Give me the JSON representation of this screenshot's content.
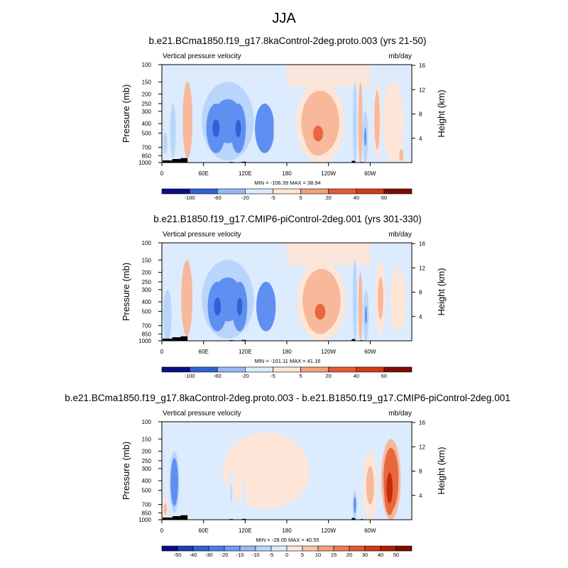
{
  "figure_title": "JJA",
  "colors": {
    "strong_blue": "#0c1d9e",
    "blue": "#2f62d6",
    "mid_blue": "#5f8ff0",
    "light_blue": "#b9d5fb",
    "pale_blue": "#dcebfd",
    "pale_red": "#fde5d7",
    "light_red": "#f7b89c",
    "red": "#e8683e",
    "dark_red": "#c62a08",
    "topography": "#000000"
  },
  "chart_data": [
    {
      "type": "heatmap",
      "title": "b.e21.BCma1850.f19_g17.8kaControl-2deg.proto.003 (yrs 21-50)",
      "variable_label": "Vertical pressure velocity",
      "units_label": "mb/day",
      "ylabel_left": "Pressure (mb)",
      "ylabel_right": "Height (km)",
      "xlabel": "",
      "x_ticks": [
        "0",
        "60E",
        "120E",
        "180",
        "120W",
        "60W"
      ],
      "x_tick_values": [
        0,
        60,
        120,
        180,
        240,
        300
      ],
      "xlim": [
        0,
        360
      ],
      "y_ticks": [
        "100",
        "150",
        "200",
        "250",
        "300",
        "400",
        "500",
        "700",
        "850",
        "1000"
      ],
      "y_tick_values": [
        100,
        150,
        200,
        250,
        300,
        400,
        500,
        700,
        850,
        1000
      ],
      "ylim": [
        1000,
        100
      ],
      "right_ticks": [
        "16",
        "12",
        "8",
        "4"
      ],
      "right_tick_values": [
        16,
        12,
        8,
        4
      ],
      "stats_text": "MIN = -106.39  MAX = 38.94",
      "min": -106.39,
      "max": 38.94,
      "colorbar_labels": [
        "-100",
        "-60",
        "-20",
        "-5",
        "5",
        "20",
        "40",
        "60"
      ],
      "features": [
        {
          "lon": 5,
          "width": 10,
          "p_top": 400,
          "p_bottom": 1000,
          "value": -15
        },
        {
          "lon": 16,
          "width": 8,
          "p_top": 250,
          "p_bottom": 900,
          "value": -30
        },
        {
          "lon": 37,
          "width": 14,
          "p_top": 150,
          "p_bottom": 900,
          "value": 30
        },
        {
          "lon": 95,
          "width": 75,
          "p_top": 150,
          "p_bottom": 950,
          "value": -45
        },
        {
          "lon": 78,
          "width": 28,
          "p_top": 250,
          "p_bottom": 800,
          "value": -70
        },
        {
          "lon": 110,
          "width": 22,
          "p_top": 250,
          "p_bottom": 800,
          "value": -75
        },
        {
          "lon": 148,
          "width": 28,
          "p_top": 250,
          "p_bottom": 800,
          "value": -60
        },
        {
          "lon": 175,
          "width": 28,
          "p_top": 200,
          "p_bottom": 1000,
          "value": -10
        },
        {
          "lon": 228,
          "width": 70,
          "p_top": 150,
          "p_bottom": 1000,
          "value": 20
        },
        {
          "lon": 225,
          "width": 40,
          "p_top": 300,
          "p_bottom": 850,
          "value": 35
        },
        {
          "lon": 278,
          "width": 6,
          "p_top": 150,
          "p_bottom": 1000,
          "value": -25
        },
        {
          "lon": 286,
          "width": 6,
          "p_top": 150,
          "p_bottom": 1000,
          "value": 25
        },
        {
          "lon": 293,
          "width": 8,
          "p_top": 300,
          "p_bottom": 1000,
          "value": -40
        },
        {
          "lon": 310,
          "width": 10,
          "p_top": 150,
          "p_bottom": 900,
          "value": 20
        },
        {
          "lon": 333,
          "width": 30,
          "p_top": 150,
          "p_bottom": 1000,
          "value": 7
        },
        {
          "lon": 345,
          "width": 8,
          "p_top": 700,
          "p_bottom": 1000,
          "value": 20
        }
      ]
    },
    {
      "type": "heatmap",
      "title": "b.e21.B1850.f19_g17.CMIP6-piControl-2deg.001 (yrs 301-330)",
      "variable_label": "Vertical pressure velocity",
      "units_label": "mb/day",
      "ylabel_left": "Pressure (mb)",
      "ylabel_right": "Height (km)",
      "xlabel": "",
      "x_ticks": [
        "0",
        "60E",
        "120E",
        "180",
        "120W",
        "60W"
      ],
      "x_tick_values": [
        0,
        60,
        120,
        180,
        240,
        300
      ],
      "xlim": [
        0,
        360
      ],
      "y_ticks": [
        "100",
        "150",
        "200",
        "250",
        "300",
        "400",
        "500",
        "700",
        "850",
        "1000"
      ],
      "y_tick_values": [
        100,
        150,
        200,
        250,
        300,
        400,
        500,
        700,
        850,
        1000
      ],
      "ylim": [
        1000,
        100
      ],
      "right_ticks": [
        "16",
        "12",
        "8",
        "4"
      ],
      "right_tick_values": [
        16,
        12,
        8,
        4
      ],
      "stats_text": "MIN = -101.11  MAX = 41.16",
      "min": -101.11,
      "max": 41.16,
      "colorbar_labels": [
        "-100",
        "-60",
        "-20",
        "-5",
        "5",
        "20",
        "40",
        "60"
      ],
      "features": [
        {
          "lon": 8,
          "width": 12,
          "p_top": 300,
          "p_bottom": 1000,
          "value": -25
        },
        {
          "lon": 36,
          "width": 16,
          "p_top": 150,
          "p_bottom": 900,
          "value": 30
        },
        {
          "lon": 95,
          "width": 75,
          "p_top": 150,
          "p_bottom": 950,
          "value": -45
        },
        {
          "lon": 80,
          "width": 28,
          "p_top": 250,
          "p_bottom": 800,
          "value": -70
        },
        {
          "lon": 112,
          "width": 22,
          "p_top": 250,
          "p_bottom": 800,
          "value": -75
        },
        {
          "lon": 150,
          "width": 28,
          "p_top": 250,
          "p_bottom": 800,
          "value": -60
        },
        {
          "lon": 178,
          "width": 28,
          "p_top": 200,
          "p_bottom": 1000,
          "value": -10
        },
        {
          "lon": 230,
          "width": 70,
          "p_top": 150,
          "p_bottom": 1000,
          "value": 20
        },
        {
          "lon": 228,
          "width": 42,
          "p_top": 300,
          "p_bottom": 850,
          "value": 35
        },
        {
          "lon": 278,
          "width": 6,
          "p_top": 150,
          "p_bottom": 1000,
          "value": -25
        },
        {
          "lon": 286,
          "width": 6,
          "p_top": 200,
          "p_bottom": 1000,
          "value": 30
        },
        {
          "lon": 294,
          "width": 8,
          "p_top": 300,
          "p_bottom": 1000,
          "value": -40
        },
        {
          "lon": 315,
          "width": 14,
          "p_top": 150,
          "p_bottom": 900,
          "value": 15
        },
        {
          "lon": 340,
          "width": 30,
          "p_top": 150,
          "p_bottom": 1000,
          "value": 5
        }
      ]
    },
    {
      "type": "heatmap",
      "title": "b.e21.BCma1850.f19_g17.8kaControl-2deg.proto.003 - b.e21.B1850.f19_g17.CMIP6-piControl-2deg.001",
      "variable_label": "Vertical pressure velocity",
      "units_label": "mb/day",
      "ylabel_left": "Pressure (mb)",
      "ylabel_right": "Height (km)",
      "xlabel": "",
      "x_ticks": [
        "0",
        "60E",
        "120E",
        "180",
        "120W",
        "60W"
      ],
      "x_tick_values": [
        0,
        60,
        120,
        180,
        240,
        300
      ],
      "xlim": [
        0,
        360
      ],
      "y_ticks": [
        "100",
        "150",
        "200",
        "250",
        "300",
        "400",
        "500",
        "700",
        "850",
        "1000"
      ],
      "y_tick_values": [
        100,
        150,
        200,
        250,
        300,
        400,
        500,
        700,
        850,
        1000
      ],
      "ylim": [
        1000,
        100
      ],
      "right_ticks": [
        "16",
        "12",
        "8",
        "4"
      ],
      "right_tick_values": [
        16,
        12,
        8,
        4
      ],
      "stats_text": "MIN = -28.05  MAX = 40.55",
      "min": -28.05,
      "max": 40.55,
      "colorbar_labels": [
        "-50",
        "-40",
        "-30",
        "-20",
        "-15",
        "-10",
        "-5",
        "0",
        "5",
        "10",
        "15",
        "20",
        "30",
        "40",
        "50"
      ],
      "features": [
        {
          "lon": 150,
          "width": 160,
          "p_top": 100,
          "p_bottom": 1000,
          "value": 3
        },
        {
          "lon": 70,
          "width": 20,
          "p_top": 150,
          "p_bottom": 1000,
          "value": -4
        },
        {
          "lon": 240,
          "width": 40,
          "p_top": 150,
          "p_bottom": 1000,
          "value": -3
        },
        {
          "lon": 18,
          "width": 14,
          "p_top": 200,
          "p_bottom": 850,
          "value": -22
        },
        {
          "lon": 5,
          "width": 8,
          "p_top": 600,
          "p_bottom": 1000,
          "value": 10
        },
        {
          "lon": 100,
          "width": 6,
          "p_top": 300,
          "p_bottom": 1000,
          "value": -8
        },
        {
          "lon": 118,
          "width": 6,
          "p_top": 400,
          "p_bottom": 1000,
          "value": -7
        },
        {
          "lon": 278,
          "width": 6,
          "p_top": 500,
          "p_bottom": 1000,
          "value": -20
        },
        {
          "lon": 300,
          "width": 20,
          "p_top": 200,
          "p_bottom": 1000,
          "value": 10
        },
        {
          "lon": 330,
          "width": 28,
          "p_top": 150,
          "p_bottom": 1000,
          "value": 25
        },
        {
          "lon": 328,
          "width": 16,
          "p_top": 250,
          "p_bottom": 900,
          "value": 35
        }
      ]
    }
  ]
}
